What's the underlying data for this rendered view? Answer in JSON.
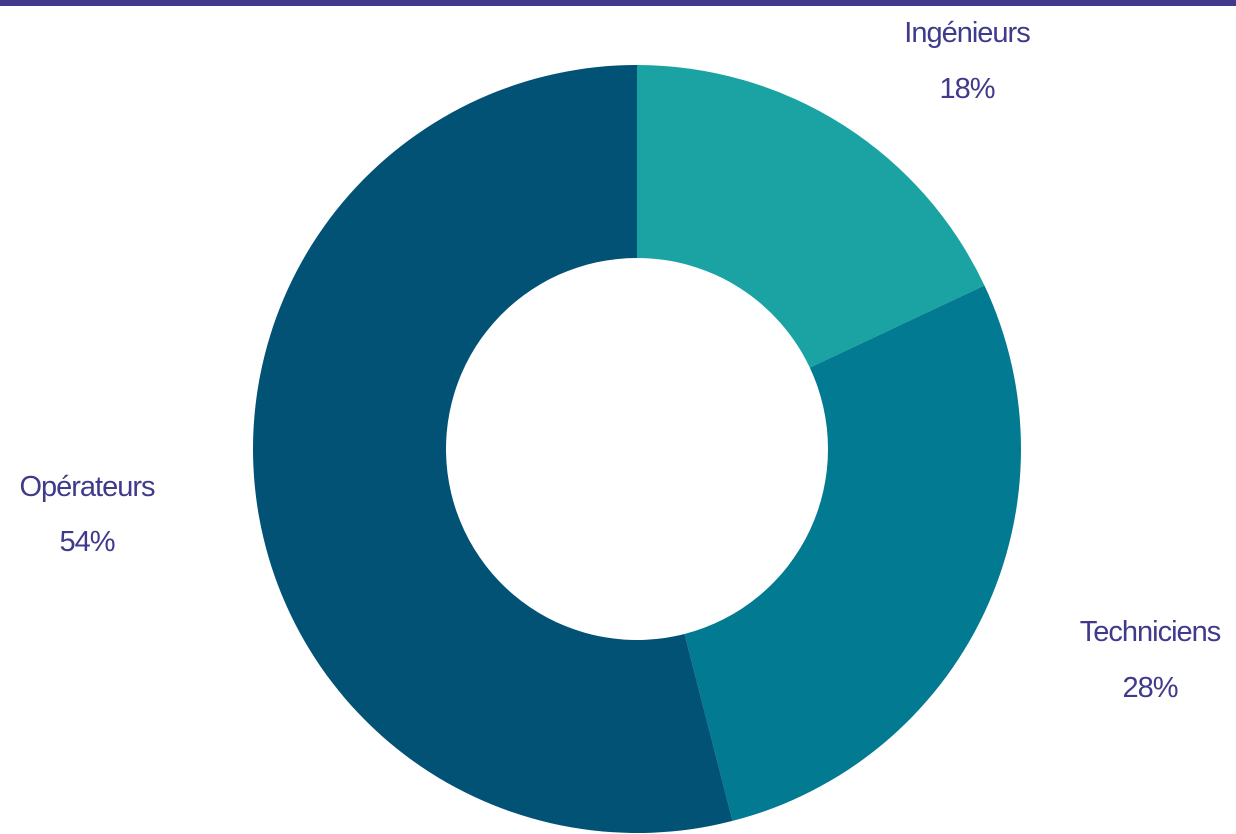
{
  "chart_data": {
    "type": "pie",
    "variant": "donut",
    "title": "",
    "categories": [
      "Ingénieurs",
      "Techniciens",
      "Opérateurs"
    ],
    "values": [
      18,
      28,
      54
    ],
    "value_labels": [
      "18%",
      "28%",
      "54%"
    ],
    "colors": [
      "#1ba3a3",
      "#027a91",
      "#025276"
    ],
    "label_color": "#3f3a8c",
    "accent_bar_color": "#3f3a8c",
    "start_position": "top",
    "direction": "clockwise",
    "legend": "none"
  }
}
